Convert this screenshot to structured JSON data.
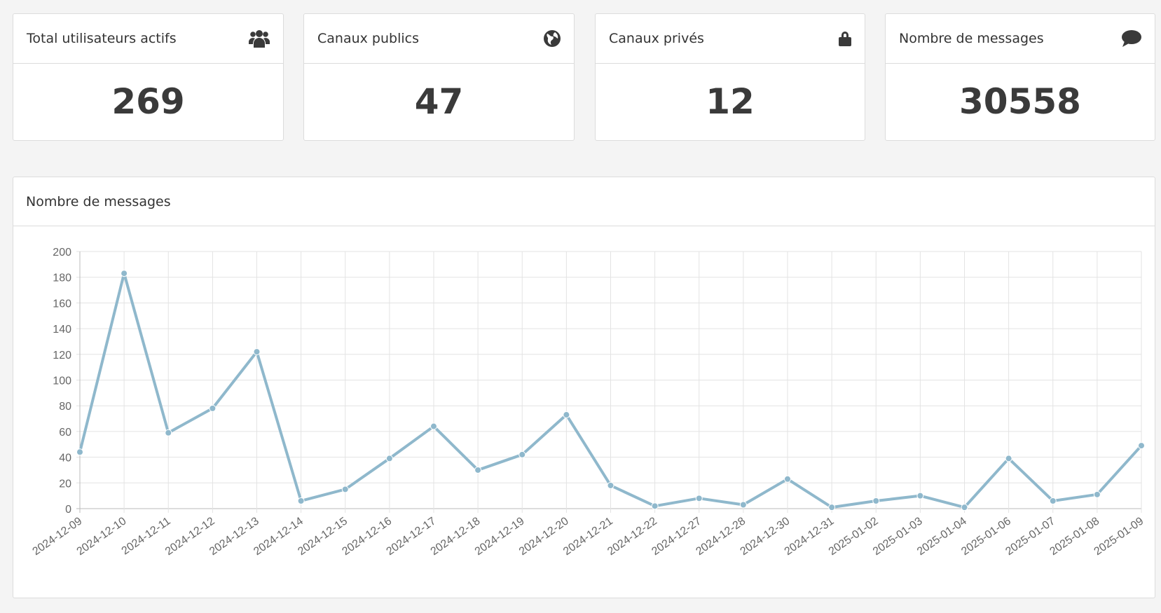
{
  "cards": [
    {
      "title": "Total utilisateurs actifs",
      "value": "269",
      "icon": "users-icon"
    },
    {
      "title": "Canaux publics",
      "value": "47",
      "icon": "globe-icon"
    },
    {
      "title": "Canaux privés",
      "value": "12",
      "icon": "lock-icon"
    },
    {
      "title": "Nombre de messages",
      "value": "30558",
      "icon": "comment-icon"
    }
  ],
  "panel": {
    "title": "Nombre de messages"
  },
  "chart_data": {
    "type": "line",
    "title": "Nombre de messages",
    "xlabel": "",
    "ylabel": "",
    "ylim": [
      0,
      200
    ],
    "yticks": [
      0,
      20,
      40,
      60,
      80,
      100,
      120,
      140,
      160,
      180,
      200
    ],
    "grid": true,
    "color": "#8fb8cc",
    "categories": [
      "2024-12-09",
      "2024-12-10",
      "2024-12-11",
      "2024-12-12",
      "2024-12-13",
      "2024-12-14",
      "2024-12-15",
      "2024-12-16",
      "2024-12-17",
      "2024-12-18",
      "2024-12-19",
      "2024-12-20",
      "2024-12-21",
      "2024-12-22",
      "2024-12-27",
      "2024-12-28",
      "2024-12-30",
      "2024-12-31",
      "2025-01-02",
      "2025-01-03",
      "2025-01-04",
      "2025-01-06",
      "2025-01-07",
      "2025-01-08",
      "2025-01-09"
    ],
    "values": [
      44,
      183,
      59,
      78,
      122,
      6,
      15,
      39,
      64,
      30,
      42,
      73,
      18,
      2,
      8,
      3,
      23,
      1,
      6,
      10,
      1,
      39,
      6,
      11,
      49
    ]
  }
}
